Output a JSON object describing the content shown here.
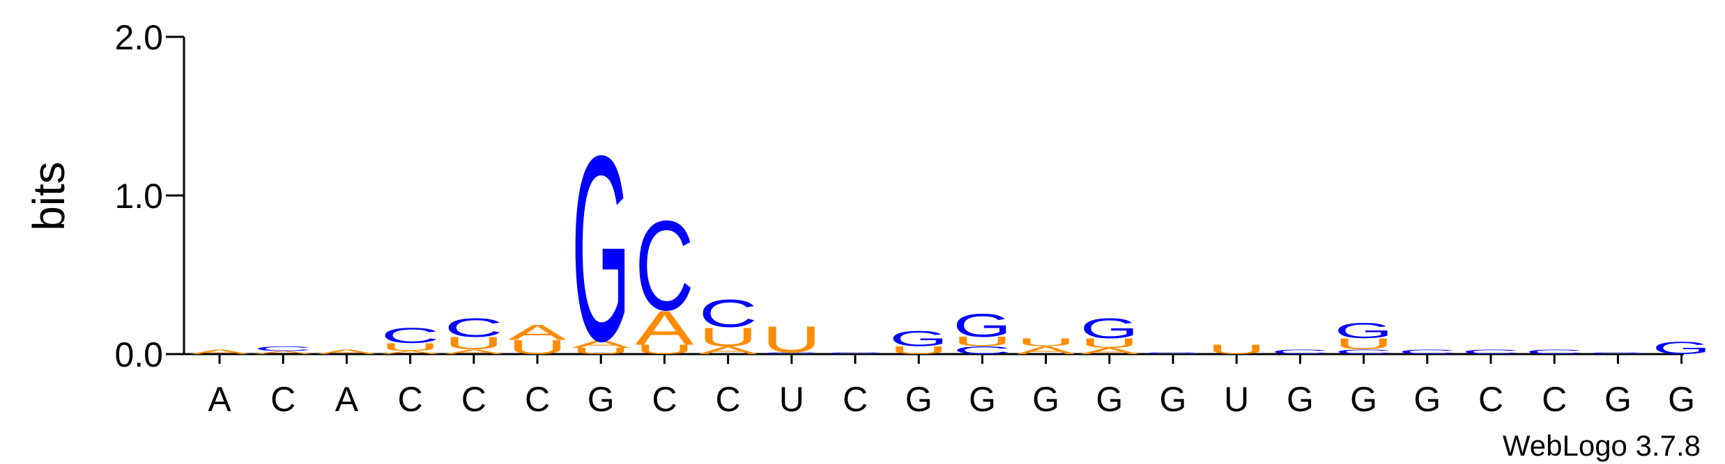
{
  "chart_data": {
    "type": "logo",
    "ylabel": "bits",
    "footer": "WebLogo 3.7.8",
    "colors": {
      "A": "#ff8c00",
      "U": "#ff8c00",
      "C": "#0000ff",
      "G": "#0000ff"
    },
    "ylim": [
      0,
      2
    ],
    "yticks": [
      {
        "value": 0,
        "label": "0.0"
      },
      {
        "value": 1,
        "label": "1.0"
      },
      {
        "value": 2,
        "label": "2.0"
      }
    ],
    "categories": [
      "A",
      "C",
      "A",
      "C",
      "C",
      "C",
      "G",
      "C",
      "C",
      "U",
      "C",
      "G",
      "G",
      "G",
      "G",
      "G",
      "U",
      "G",
      "G",
      "G",
      "C",
      "C",
      "G",
      "G"
    ],
    "stacks": [
      [
        {
          "letter": "A",
          "height": 0.03
        }
      ],
      [
        {
          "letter": "A",
          "height": 0.02
        },
        {
          "letter": "C",
          "height": 0.03
        }
      ],
      [
        {
          "letter": "A",
          "height": 0.03
        }
      ],
      [
        {
          "letter": "A",
          "height": 0.02
        },
        {
          "letter": "U",
          "height": 0.05
        },
        {
          "letter": "C",
          "height": 0.1
        }
      ],
      [
        {
          "letter": "A",
          "height": 0.03
        },
        {
          "letter": "U",
          "height": 0.08
        },
        {
          "letter": "C",
          "height": 0.12
        }
      ],
      [
        {
          "letter": "U",
          "height": 0.09
        },
        {
          "letter": "A",
          "height": 0.1
        }
      ],
      [
        {
          "letter": "U",
          "height": 0.04
        },
        {
          "letter": "A",
          "height": 0.05
        },
        {
          "letter": "G",
          "height": 1.2
        }
      ],
      [
        {
          "letter": "U",
          "height": 0.06
        },
        {
          "letter": "A",
          "height": 0.22
        },
        {
          "letter": "C",
          "height": 0.58
        }
      ],
      [
        {
          "letter": "A",
          "height": 0.05
        },
        {
          "letter": "U",
          "height": 0.12
        },
        {
          "letter": "C",
          "height": 0.18
        }
      ],
      [
        {
          "letter": "C",
          "height": 0.01
        },
        {
          "letter": "U",
          "height": 0.17
        }
      ],
      [
        {
          "letter": "C",
          "height": 0.01
        }
      ],
      [
        {
          "letter": "U",
          "height": 0.05
        },
        {
          "letter": "G",
          "height": 0.1
        }
      ],
      [
        {
          "letter": "C",
          "height": 0.05
        },
        {
          "letter": "U",
          "height": 0.06
        },
        {
          "letter": "G",
          "height": 0.15
        }
      ],
      [
        {
          "letter": "A",
          "height": 0.05
        },
        {
          "letter": "U",
          "height": 0.05
        }
      ],
      [
        {
          "letter": "A",
          "height": 0.04
        },
        {
          "letter": "U",
          "height": 0.06
        },
        {
          "letter": "G",
          "height": 0.13
        }
      ],
      [
        {
          "letter": "G",
          "height": 0.01
        }
      ],
      [
        {
          "letter": "U",
          "height": 0.06
        }
      ],
      [
        {
          "letter": "C",
          "height": 0.03
        }
      ],
      [
        {
          "letter": "C",
          "height": 0.03
        },
        {
          "letter": "U",
          "height": 0.07
        },
        {
          "letter": "G",
          "height": 0.1
        }
      ],
      [
        {
          "letter": "C",
          "height": 0.03
        }
      ],
      [
        {
          "letter": "C",
          "height": 0.03
        }
      ],
      [
        {
          "letter": "C",
          "height": 0.03
        }
      ],
      [
        {
          "letter": "G",
          "height": 0.01
        }
      ],
      [
        {
          "letter": "G",
          "height": 0.08
        }
      ]
    ]
  }
}
